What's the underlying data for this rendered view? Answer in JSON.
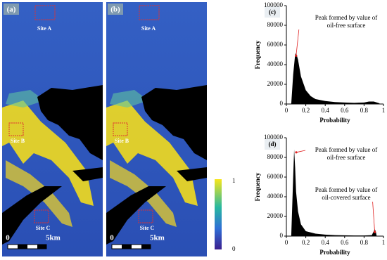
{
  "maps": [
    {
      "label": "(a)",
      "sites": [
        "Site A",
        "Site B",
        "Site C"
      ],
      "scale": [
        "0",
        "5km"
      ]
    },
    {
      "label": "(b)",
      "sites": [
        "Site A",
        "Site B",
        "Site C"
      ],
      "scale": [
        "0",
        "5km"
      ]
    }
  ],
  "colorbar": {
    "max": "1",
    "min": "0"
  },
  "chart_data": [
    {
      "type": "area",
      "panel": "(c)",
      "color": "#000000",
      "x": [
        0.05,
        0.07,
        0.09,
        0.1,
        0.12,
        0.15,
        0.2,
        0.25,
        0.3,
        0.4,
        0.5,
        0.6,
        0.7,
        0.8,
        0.85,
        0.9,
        0.95,
        0.97
      ],
      "values": [
        0,
        30000,
        50000,
        52000,
        45000,
        28000,
        14000,
        8000,
        5000,
        3000,
        2000,
        1500,
        1200,
        1500,
        2500,
        2500,
        1000,
        0
      ],
      "xlim": [
        0,
        1
      ],
      "ylim": [
        0,
        100000
      ],
      "xticks": [
        0,
        0.2,
        0.4,
        0.6,
        0.8,
        1
      ],
      "yticks": [
        0,
        20000,
        40000,
        60000,
        80000,
        100000
      ],
      "x_label": "Probability",
      "y_label": "Frequency",
      "annotations": [
        [
          "Peak formed by value of",
          "oil-free surface"
        ]
      ]
    },
    {
      "type": "area",
      "panel": "(d)",
      "color": "#000000",
      "x": [
        0.05,
        0.07,
        0.08,
        0.09,
        0.1,
        0.12,
        0.15,
        0.2,
        0.3,
        0.4,
        0.5,
        0.6,
        0.7,
        0.8,
        0.88,
        0.9,
        0.91,
        0.92,
        0.93
      ],
      "values": [
        0,
        60000,
        88000,
        70000,
        45000,
        25000,
        12000,
        5000,
        2500,
        1500,
        1000,
        800,
        600,
        600,
        1000,
        5000,
        7000,
        5000,
        0
      ],
      "xlim": [
        0,
        1
      ],
      "ylim": [
        0,
        100000
      ],
      "xticks": [
        0,
        0.2,
        0.4,
        0.6,
        0.8,
        1
      ],
      "yticks": [
        0,
        20000,
        40000,
        60000,
        80000,
        100000
      ],
      "x_label": "Probability",
      "y_label": "Frequency",
      "annotations": [
        [
          "Peak formed by value of",
          "oil-free surface"
        ],
        [
          "Peak formed by value of",
          "oil-covered surface"
        ]
      ]
    }
  ]
}
